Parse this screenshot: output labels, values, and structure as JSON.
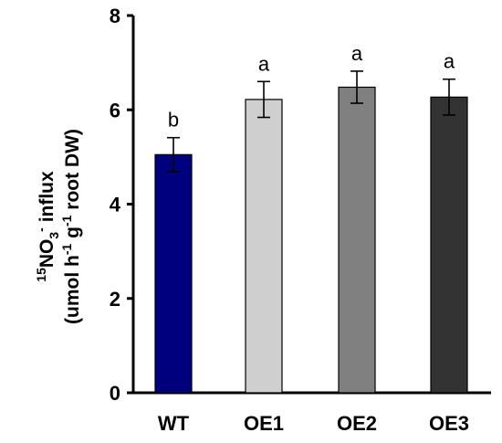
{
  "chart_data": {
    "type": "bar",
    "categories": [
      "WT",
      "OE1",
      "OE2",
      "OE3"
    ],
    "values": [
      5.05,
      6.22,
      6.48,
      6.27
    ],
    "errors": [
      0.36,
      0.38,
      0.34,
      0.38
    ],
    "significance": [
      "b",
      "a",
      "a",
      "a"
    ],
    "bar_colors": [
      "#00007f",
      "#cfcfcf",
      "#808080",
      "#333333"
    ],
    "ylim": [
      0,
      8
    ],
    "yticks": [
      0,
      2,
      4,
      6,
      8
    ],
    "ylabel": {
      "line1": {
        "sup": "15",
        "main": "NO",
        "sub": "3",
        "sup2": "-",
        "rest": " influx"
      },
      "line2": {
        "a": "(umol h",
        "sup1": "-1",
        "b": " g",
        "sup2": "-1",
        "c": " root DW)"
      }
    },
    "xlabel": "",
    "title": "",
    "grid": false
  }
}
